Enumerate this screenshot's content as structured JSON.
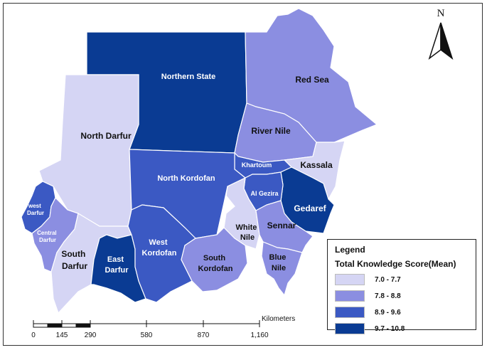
{
  "north_label": "N",
  "colors": {
    "c1": "#d5d5f4",
    "c2": "#8b8ee1",
    "c3": "#3b59c3",
    "c4": "#0a3b93"
  },
  "regions": [
    {
      "name": "Northern State",
      "cls": "9.7 - 10.8"
    },
    {
      "name": "Red Sea",
      "cls": "7.8 - 8.8"
    },
    {
      "name": "River Nile",
      "cls": "7.8 - 8.8"
    },
    {
      "name": "North Darfur",
      "cls": "7.0 - 7.7"
    },
    {
      "name": "Kassala",
      "cls": "7.0 - 7.7"
    },
    {
      "name": "Khartoum",
      "cls": "8.9 - 9.6"
    },
    {
      "name": "North Kordofan",
      "cls": "8.9 - 9.6"
    },
    {
      "name": "Gedaref",
      "cls": "9.7 - 10.8"
    },
    {
      "name": "Al Gezira",
      "cls": "8.9 - 9.6"
    },
    {
      "name": "west Darfur",
      "cls": "8.9 - 9.6"
    },
    {
      "name": "Central Darfur",
      "cls": "7.8 - 8.8"
    },
    {
      "name": "White Nile",
      "cls": "7.0 - 7.7"
    },
    {
      "name": "Sennar",
      "cls": "7.8 - 8.8"
    },
    {
      "name": "West Kordofan",
      "cls": "8.9 - 9.6"
    },
    {
      "name": "South Darfur",
      "cls": "7.0 - 7.7"
    },
    {
      "name": "East Darfur",
      "cls": "9.7 - 10.8"
    },
    {
      "name": "South Kordofan",
      "cls": "7.8 - 8.8"
    },
    {
      "name": "Blue Nile",
      "cls": "7.8 - 8.8"
    }
  ],
  "legend": {
    "title": "Legend",
    "subtitle": "Total Knowledge Score(Mean)",
    "items": [
      {
        "label": "7.0 - 7.7",
        "color": "#d5d5f4"
      },
      {
        "label": "7.8 - 8.8",
        "color": "#8b8ee1"
      },
      {
        "label": "8.9 - 9.6",
        "color": "#3b59c3"
      },
      {
        "label": "9.7 - 10.8",
        "color": "#0a3b93"
      }
    ]
  },
  "scale_bar": {
    "unit": "Kilometers",
    "ticks": [
      "0",
      "145",
      "290",
      "580",
      "870",
      "1,160"
    ]
  }
}
